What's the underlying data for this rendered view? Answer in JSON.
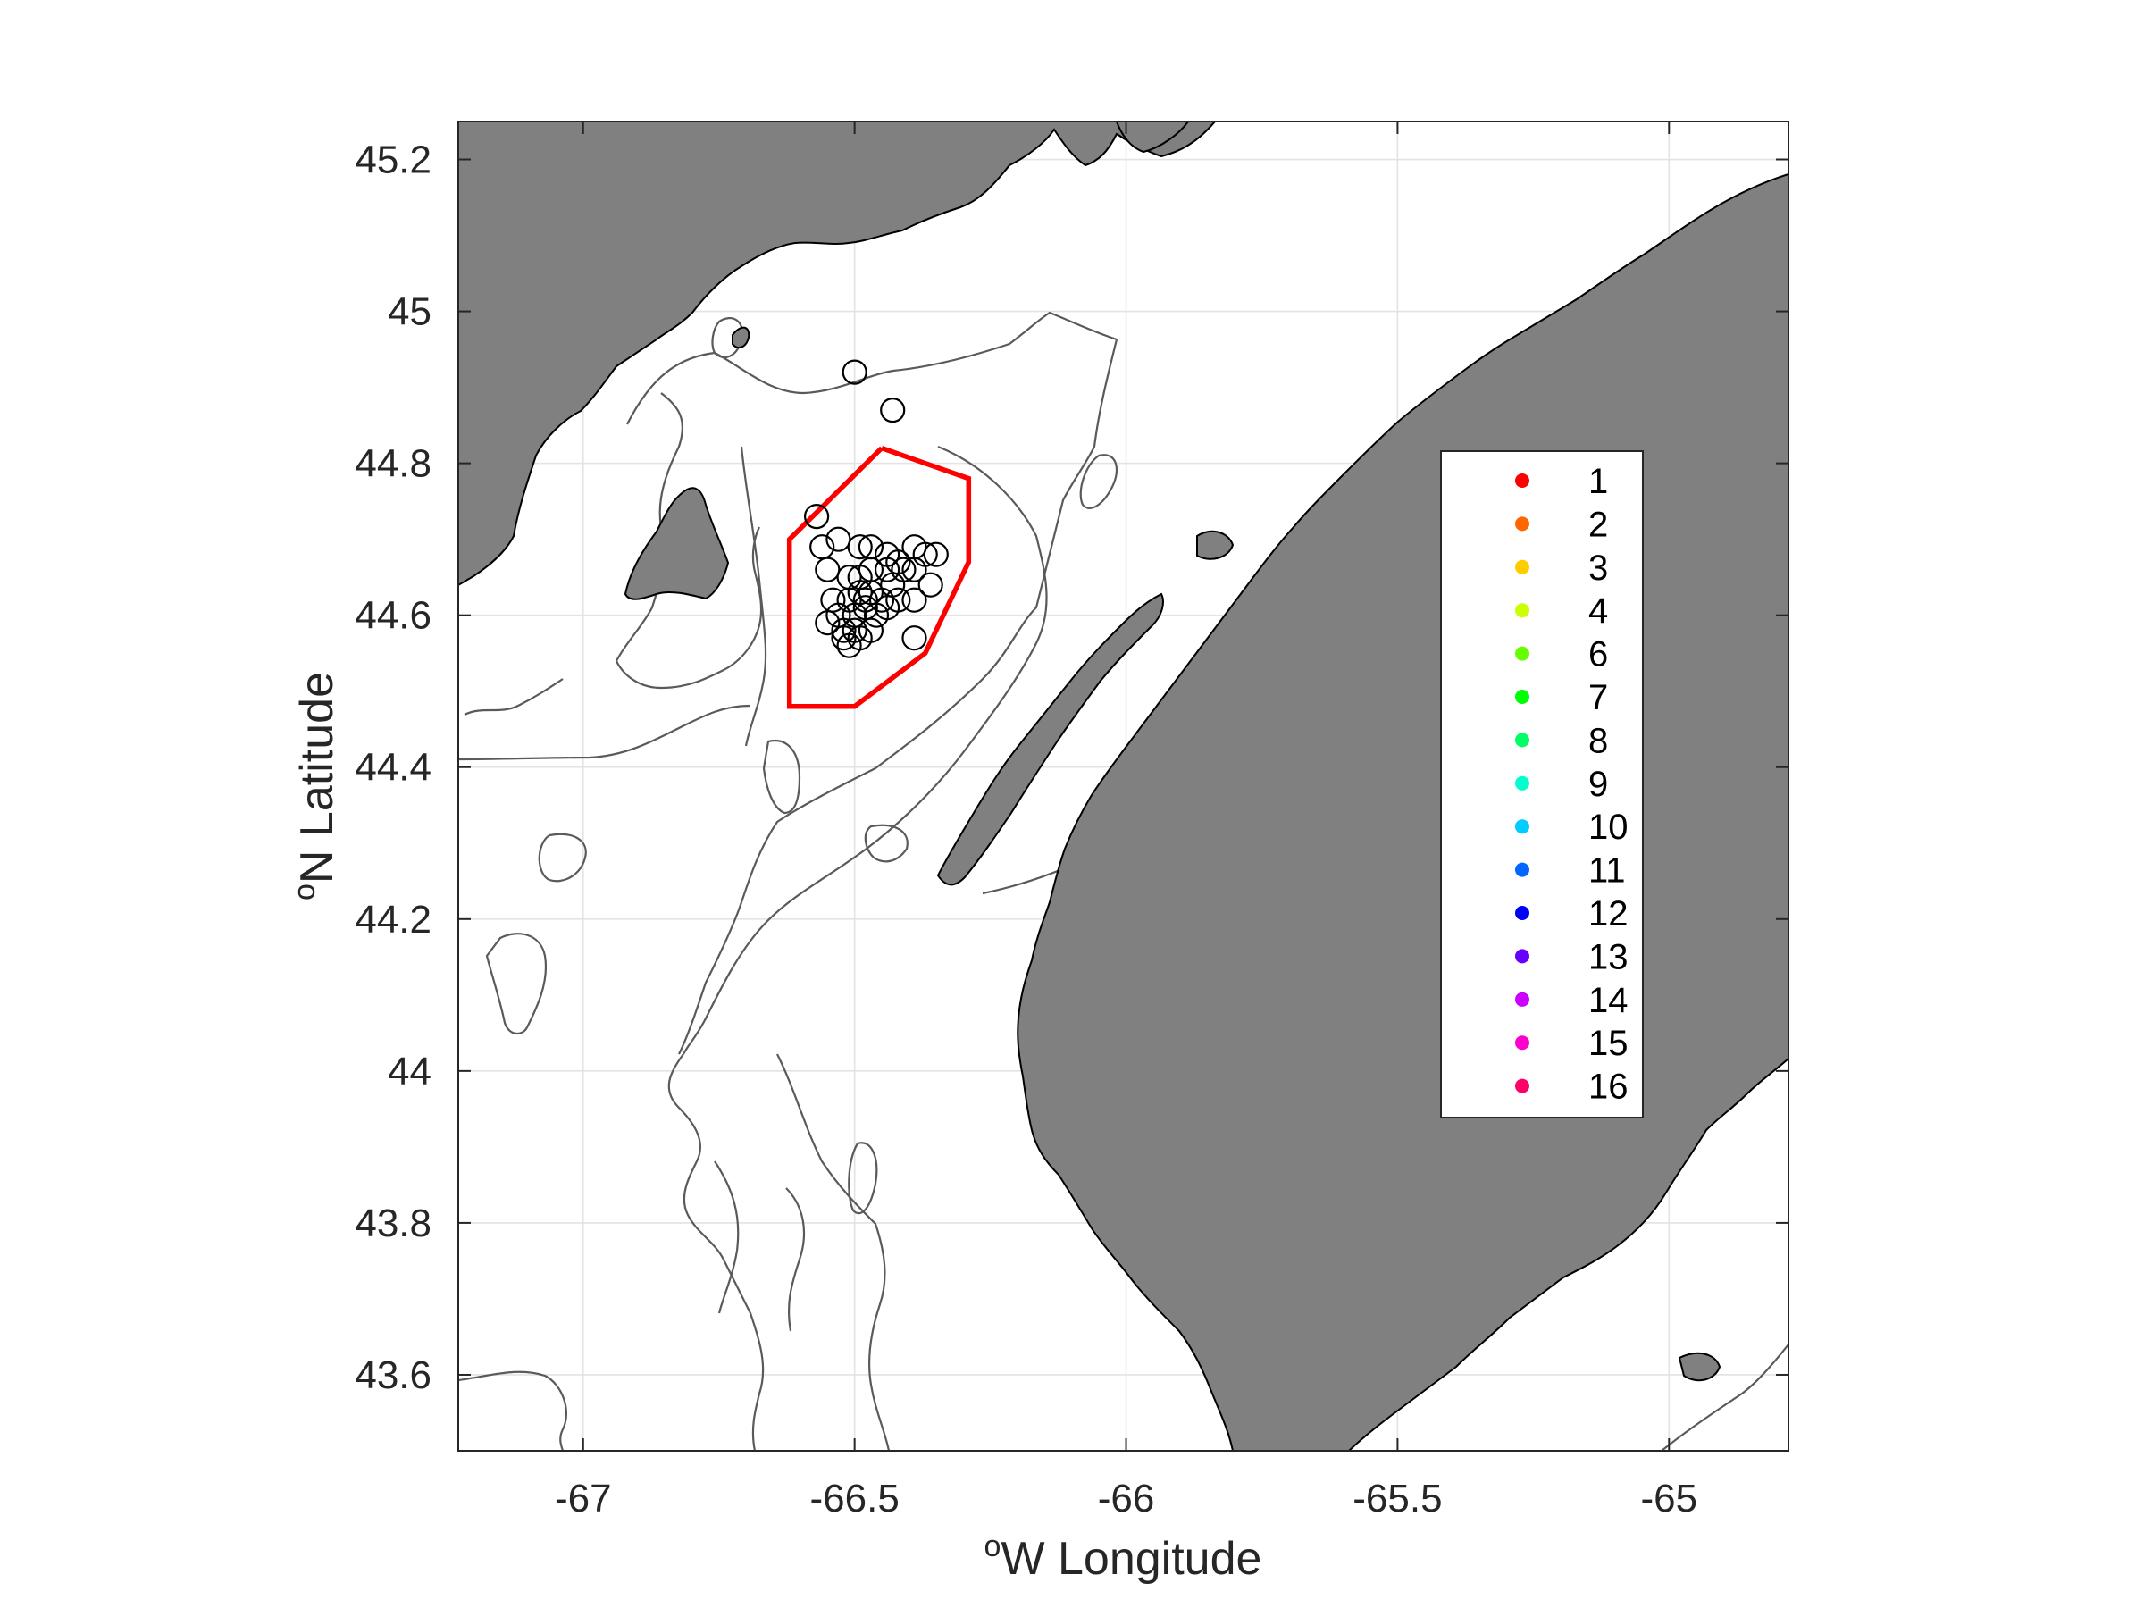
{
  "map": {
    "x_label_prefix": "o",
    "x_label_text": "W Longitude",
    "y_label_prefix": "o",
    "y_label_text": "N Latitude",
    "x_ticks": [
      "-67",
      "-66.5",
      "-66",
      "-65.5",
      "-65"
    ],
    "x_tick_values": [
      -67,
      -66.5,
      -66,
      -65.5,
      -65
    ],
    "y_ticks": [
      "45.2",
      "45",
      "44.8",
      "44.6",
      "44.4",
      "44.2",
      "44",
      "43.8",
      "43.6"
    ],
    "y_tick_values": [
      45.2,
      45.0,
      44.8,
      44.6,
      44.4,
      44.2,
      44.0,
      43.8,
      43.6
    ],
    "xlim": [
      -67.23,
      -64.78
    ],
    "ylim": [
      43.5,
      45.25
    ],
    "grid": true,
    "land_color": "#808080",
    "polygon_color": "#ff0000",
    "area_polygon_lonlat": [
      [
        -66.45,
        44.82
      ],
      [
        -66.29,
        44.78
      ],
      [
        -66.29,
        44.67
      ],
      [
        -66.37,
        44.55
      ],
      [
        -66.5,
        44.48
      ],
      [
        -66.62,
        44.48
      ],
      [
        -66.62,
        44.7
      ]
    ],
    "sightings_lonlat": [
      [
        -66.5,
        44.92
      ],
      [
        -66.43,
        44.87
      ],
      [
        -66.57,
        44.73
      ],
      [
        -66.53,
        44.7
      ],
      [
        -66.56,
        44.69
      ],
      [
        -66.55,
        44.66
      ],
      [
        -66.49,
        44.69
      ],
      [
        -66.47,
        44.69
      ],
      [
        -66.44,
        44.68
      ],
      [
        -66.42,
        44.67
      ],
      [
        -66.39,
        44.69
      ],
      [
        -66.37,
        44.68
      ],
      [
        -66.35,
        44.68
      ],
      [
        -66.41,
        44.66
      ],
      [
        -66.44,
        44.66
      ],
      [
        -66.47,
        44.66
      ],
      [
        -66.49,
        44.65
      ],
      [
        -66.51,
        44.65
      ],
      [
        -66.43,
        44.64
      ],
      [
        -66.39,
        44.66
      ],
      [
        -66.36,
        44.64
      ],
      [
        -66.39,
        44.62
      ],
      [
        -66.42,
        44.62
      ],
      [
        -66.45,
        44.62
      ],
      [
        -66.47,
        44.63
      ],
      [
        -66.49,
        44.63
      ],
      [
        -66.51,
        44.62
      ],
      [
        -66.54,
        44.62
      ],
      [
        -66.53,
        44.6
      ],
      [
        -66.5,
        44.6
      ],
      [
        -66.48,
        44.61
      ],
      [
        -66.46,
        44.6
      ],
      [
        -66.44,
        44.61
      ],
      [
        -66.55,
        44.59
      ],
      [
        -66.52,
        44.58
      ],
      [
        -66.5,
        44.58
      ],
      [
        -66.47,
        44.58
      ],
      [
        -66.52,
        44.57
      ],
      [
        -66.51,
        44.56
      ],
      [
        -66.49,
        44.57
      ],
      [
        -66.39,
        44.57
      ],
      [
        -66.48,
        44.62
      ]
    ]
  },
  "legend": {
    "position": "right",
    "items": [
      {
        "label": "1",
        "color": "#ff0000"
      },
      {
        "label": "2",
        "color": "#ff6600"
      },
      {
        "label": "3",
        "color": "#ffcc00"
      },
      {
        "label": "4",
        "color": "#ccff00"
      },
      {
        "label": "6",
        "color": "#66ff00"
      },
      {
        "label": "7",
        "color": "#00ff00"
      },
      {
        "label": "8",
        "color": "#00ff66"
      },
      {
        "label": "9",
        "color": "#00ffcc"
      },
      {
        "label": "10",
        "color": "#00ccff"
      },
      {
        "label": "11",
        "color": "#0066ff"
      },
      {
        "label": "12",
        "color": "#0000ff"
      },
      {
        "label": "13",
        "color": "#6600ff"
      },
      {
        "label": "14",
        "color": "#cc00ff"
      },
      {
        "label": "15",
        "color": "#ff00cc"
      },
      {
        "label": "16",
        "color": "#ff0066"
      }
    ]
  }
}
